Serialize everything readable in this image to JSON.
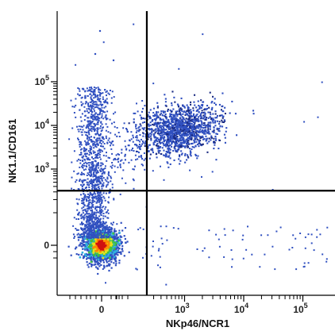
{
  "chart_data": {
    "type": "scatter",
    "plot_style": "flow-cytometry pseudocolor density dot plot",
    "title": "",
    "xlabel": "NKp46/NCR1",
    "ylabel": "NK1.1/CD161",
    "x_scale": "biexponential",
    "y_scale": "biexponential",
    "xlim": [
      -300,
      120000
    ],
    "ylim": [
      -300,
      250000
    ],
    "x_ticks": [
      {
        "value": 0,
        "label": "0"
      },
      {
        "value": 1000,
        "label": "10",
        "exp": "3"
      },
      {
        "value": 10000,
        "label": "10",
        "exp": "4"
      },
      {
        "value": 100000,
        "label": "10",
        "exp": "5"
      }
    ],
    "y_ticks": [
      {
        "value": 0,
        "label": "0"
      },
      {
        "value": 1000,
        "label": "10",
        "exp": "3"
      },
      {
        "value": 10000,
        "label": "10",
        "exp": "4"
      },
      {
        "value": 100000,
        "label": "10",
        "exp": "5"
      }
    ],
    "quadrant_gate": {
      "x": 230,
      "y": 320
    },
    "populations": [
      {
        "name": "",
        "x_center": 0,
        "y_center": 0,
        "density": "very high",
        "colors": [
          "#d01010",
          "#ff8800",
          "#e8e020",
          "#40c040",
          "#30b0e0",
          "#3050c0"
        ]
      },
      {
        "name": "",
        "x_center": 0,
        "y_range": [
          300,
          12000
        ],
        "density": "medium",
        "colors": [
          "#3050c0"
        ]
      },
      {
        "name": "",
        "x_center": 900,
        "y_center": 8000,
        "density": "medium-high",
        "colors": [
          "#3050c0",
          "#1a2a80"
        ]
      }
    ],
    "grid": false,
    "legend": "none",
    "colors": {
      "low_density": "#3050c0",
      "high_density": "#d01010",
      "gate_line": "#000000"
    }
  }
}
